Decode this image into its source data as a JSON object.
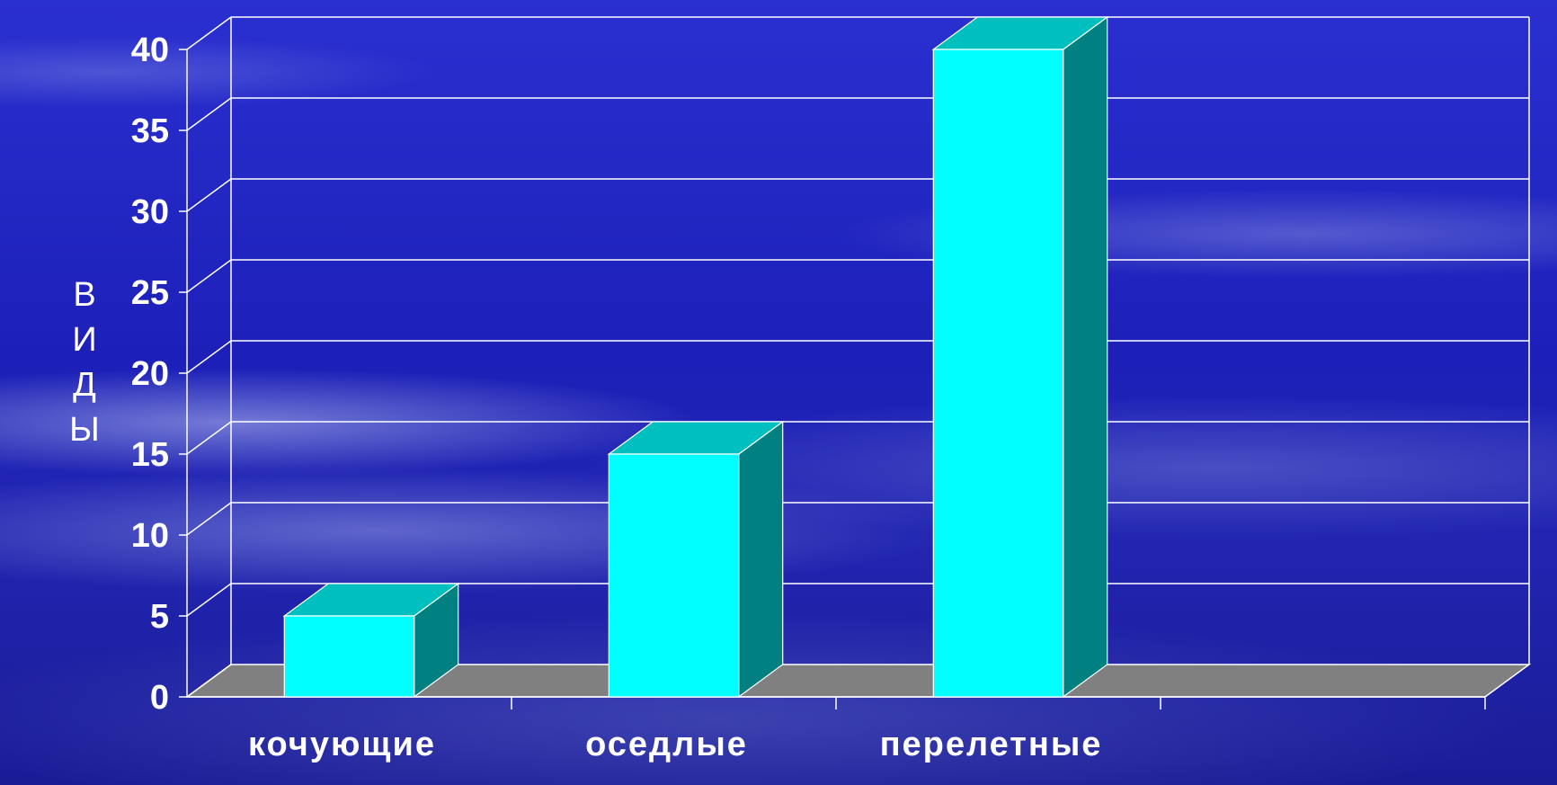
{
  "chart_data": {
    "type": "bar",
    "categories": [
      "кочующие",
      "оседлые",
      "перелетные"
    ],
    "values": [
      5,
      15,
      40
    ],
    "ylabel": "виды",
    "ylabel_letters": [
      "В",
      "И",
      "Д",
      "Ы"
    ],
    "ylim": [
      0,
      40
    ],
    "yticks": [
      0,
      5,
      10,
      15,
      20,
      25,
      30,
      35,
      40
    ],
    "grid": true,
    "three_d": true,
    "colors": {
      "bar_front": "#00FFFF",
      "bar_top": "#00BFBF",
      "bar_side": "#008080",
      "floor": "#808080",
      "gridline": "#FFFFFF"
    }
  }
}
